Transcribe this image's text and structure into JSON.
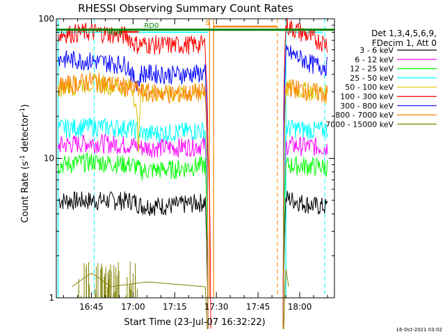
{
  "chart_data": {
    "type": "line",
    "title": "RHESSI Observing Summary Count Rates",
    "xlabel": "Start Time (23-Jul-07 16:32:22)",
    "ylabel_main": "Count Rate (s",
    "ylabel_sup1": "-1",
    "ylabel_mid": " detector",
    "ylabel_sup2": "-1",
    "ylabel_end": ")",
    "y_scale": "log",
    "ylim": [
      1,
      100
    ],
    "y_ticks": [
      {
        "value": 1,
        "label": "1"
      },
      {
        "value": 10,
        "label": "10"
      },
      {
        "value": 100,
        "label": "100"
      }
    ],
    "xlim": [
      "16:32:22",
      "18:12:30"
    ],
    "x_ticks": [
      {
        "value": "16:45",
        "label": "16:45"
      },
      {
        "value": "17:00",
        "label": "17:00"
      },
      {
        "value": "17:15",
        "label": "17:15"
      },
      {
        "value": "17:30",
        "label": "17:30"
      },
      {
        "value": "17:45",
        "label": "17:45"
      },
      {
        "value": "18:00",
        "label": "18:00"
      }
    ],
    "legend_header": [
      "Det 1,3,4,5,6,9,",
      "FDecim 1, Att 0"
    ],
    "legend_position": "right",
    "series": [
      {
        "name": "3 - 6 keV",
        "color": "#000000",
        "points": [
          [
            "16:33",
            5.0
          ],
          [
            "16:45",
            5.0
          ],
          [
            "17:00",
            5.0
          ],
          [
            "17:03",
            4.6
          ],
          [
            "17:15",
            4.6
          ],
          [
            "17:26",
            4.9
          ],
          [
            "17:27",
            0.2
          ],
          [
            "17:54",
            0.2
          ],
          [
            "17:55",
            5.2
          ],
          [
            "18:05",
            4.6
          ],
          [
            "18:10",
            4.5
          ]
        ]
      },
      {
        "name": "6 - 12 keV",
        "color": "#ff00ff",
        "points": [
          [
            "16:33",
            12.5
          ],
          [
            "16:45",
            13
          ],
          [
            "17:00",
            12.5
          ],
          [
            "17:03",
            12
          ],
          [
            "17:15",
            12
          ],
          [
            "17:26",
            12.5
          ],
          [
            "17:27",
            0.2
          ],
          [
            "17:54",
            0.2
          ],
          [
            "17:55",
            12.5
          ],
          [
            "18:05",
            12.2
          ],
          [
            "18:10",
            12
          ]
        ]
      },
      {
        "name": "12 - 25 keV",
        "color": "#00ff00",
        "points": [
          [
            "16:33",
            9.0
          ],
          [
            "16:45",
            9.5
          ],
          [
            "17:00",
            9.0
          ],
          [
            "17:03",
            8.2
          ],
          [
            "17:15",
            8.4
          ],
          [
            "17:26",
            9.0
          ],
          [
            "17:27",
            0.2
          ],
          [
            "17:54",
            0.2
          ],
          [
            "17:55",
            9.0
          ],
          [
            "18:05",
            8.8
          ],
          [
            "18:10",
            8.7
          ]
        ]
      },
      {
        "name": "25 - 50 keV",
        "color": "#00ffff",
        "points": [
          [
            "16:33",
            16.5
          ],
          [
            "16:45",
            17
          ],
          [
            "17:00",
            16.5
          ],
          [
            "17:03",
            15
          ],
          [
            "17:15",
            15.5
          ],
          [
            "17:26",
            16
          ],
          [
            "17:27",
            0.2
          ],
          [
            "17:54",
            0.2
          ],
          [
            "17:55",
            16.5
          ],
          [
            "18:05",
            16
          ],
          [
            "18:10",
            16
          ]
        ]
      },
      {
        "name": "50 - 100 keV",
        "color": "#e0c000",
        "points": [
          [
            "16:33",
            32
          ],
          [
            "16:45",
            35
          ],
          [
            "17:00",
            32
          ],
          [
            "17:02",
            13
          ],
          [
            "17:03",
            30
          ],
          [
            "17:15",
            29
          ],
          [
            "17:26",
            30
          ],
          [
            "17:27",
            0.2
          ],
          [
            "17:54",
            0.2
          ],
          [
            "17:55",
            32
          ],
          [
            "18:05",
            30
          ],
          [
            "18:10",
            29
          ]
        ]
      },
      {
        "name": "100 - 300 keV",
        "color": "#ff0000",
        "points": [
          [
            "16:33",
            78
          ],
          [
            "16:45",
            81
          ],
          [
            "16:58",
            76
          ],
          [
            "17:00",
            68
          ],
          [
            "17:02",
            65
          ],
          [
            "17:03",
            66
          ],
          [
            "17:15",
            65
          ],
          [
            "17:26",
            66
          ],
          [
            "17:27",
            11
          ],
          [
            "17:28",
            0.2
          ],
          [
            "17:54",
            0.2
          ],
          [
            "17:55",
            90
          ],
          [
            "18:05",
            72
          ],
          [
            "18:10",
            67
          ]
        ]
      },
      {
        "name": "300 - 800 keV",
        "color": "#0000ff",
        "points": [
          [
            "16:33",
            52
          ],
          [
            "16:45",
            50
          ],
          [
            "16:58",
            47
          ],
          [
            "17:00",
            38
          ],
          [
            "17:02",
            35
          ],
          [
            "17:03",
            41
          ],
          [
            "17:15",
            40
          ],
          [
            "17:26",
            41
          ],
          [
            "17:27",
            0.2
          ],
          [
            "17:54",
            0.2
          ],
          [
            "17:55",
            58
          ],
          [
            "18:05",
            47
          ],
          [
            "18:10",
            46
          ]
        ]
      },
      {
        "name": "800 - 7000 keV",
        "color": "#ff8000",
        "points": [
          [
            "16:33",
            33
          ],
          [
            "16:45",
            36
          ],
          [
            "17:00",
            32
          ],
          [
            "17:03",
            30
          ],
          [
            "17:15",
            29
          ],
          [
            "17:26",
            30
          ],
          [
            "17:27",
            0.2
          ],
          [
            "17:54",
            0.2
          ],
          [
            "17:55",
            33
          ],
          [
            "18:05",
            30
          ],
          [
            "18:10",
            29
          ]
        ]
      },
      {
        "name": "7000 - 15000 keV",
        "color": "#808000",
        "points": [
          [
            "16:38",
            1.2
          ],
          [
            "16:45",
            1.5
          ],
          [
            "16:52",
            1.2
          ],
          [
            "17:05",
            1.3
          ],
          [
            "17:26",
            1.2
          ],
          [
            "17:27",
            0.2
          ],
          [
            "17:54",
            0.2
          ],
          [
            "17:55",
            1.6
          ],
          [
            "17:56",
            1.2
          ]
        ]
      }
    ],
    "annotations": [
      {
        "text": "RD0",
        "color": "#008000"
      },
      {
        "text": "RD4",
        "color": "#008000"
      },
      {
        "text": "S",
        "color": "#ff8000"
      }
    ],
    "footer_timestamp": "16-Oct-2021 03:02"
  }
}
